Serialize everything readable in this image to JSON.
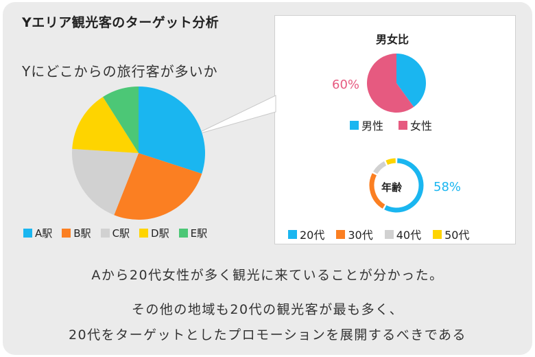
{
  "title": "Yエリア観光客のターゲット分析",
  "subtitle": "Yにどこからの旅行客が多いか",
  "chart_data": [
    {
      "type": "pie",
      "title": "",
      "categories": [
        "A駅",
        "B駅",
        "C駅",
        "D駅",
        "E駅"
      ],
      "values": [
        30,
        26,
        20,
        15,
        9
      ],
      "colors": [
        "#1ab6f0",
        "#fb7f22",
        "#d1d1d1",
        "#fed400",
        "#4cc776"
      ],
      "legend": "bottom"
    },
    {
      "type": "pie",
      "title": "男女比",
      "categories": [
        "男性",
        "女性"
      ],
      "values": [
        40,
        60
      ],
      "colors": [
        "#1ab6f0",
        "#e65a80"
      ],
      "data_labels": {
        "女性": "60%"
      },
      "legend": "bottom"
    },
    {
      "type": "pie",
      "style": "donut",
      "title": "年齢",
      "categories": [
        "20代",
        "30代",
        "40代",
        "50代"
      ],
      "values": [
        58,
        25,
        10,
        7
      ],
      "colors": [
        "#1ab6f0",
        "#fb7f22",
        "#d1d1d1",
        "#fed400"
      ],
      "data_labels": {
        "20代": "58%"
      },
      "legend": "bottom"
    }
  ],
  "conclusion": {
    "line1": "Aから20代女性が多く観光に来ていることが分かった。",
    "line2": "その他の地域も20代の観光客が最も多く、",
    "line3": "20代をターゲットとしたプロモーションを展開するべきである"
  }
}
